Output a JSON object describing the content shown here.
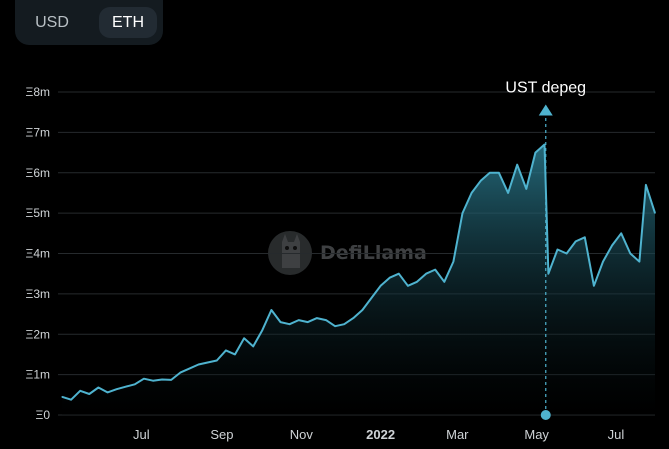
{
  "toggle": {
    "options": [
      "USD",
      "ETH"
    ],
    "selected": "ETH"
  },
  "watermark": {
    "text": "DefiLlama"
  },
  "colors": {
    "line": "#4fb3cf",
    "fill_top": "#2b7b8f",
    "fill_bottom": "#000000",
    "text": "#e6e6e6",
    "axis_text": "#cfd3d6",
    "background": "#000000"
  },
  "chart_data": {
    "type": "area",
    "title": "",
    "xlabel": "",
    "ylabel": "",
    "y_unit": "Ξ",
    "ylim": [
      0,
      8000000
    ],
    "y_ticks": [
      {
        "value": 0,
        "label": "Ξ0"
      },
      {
        "value": 1000000,
        "label": "Ξ1m"
      },
      {
        "value": 2000000,
        "label": "Ξ2m"
      },
      {
        "value": 3000000,
        "label": "Ξ3m"
      },
      {
        "value": 4000000,
        "label": "Ξ4m"
      },
      {
        "value": 5000000,
        "label": "Ξ5m"
      },
      {
        "value": 6000000,
        "label": "Ξ6m"
      },
      {
        "value": 7000000,
        "label": "Ξ7m"
      },
      {
        "value": 8000000,
        "label": "Ξ8m"
      }
    ],
    "xlim": [
      "2021-05-01",
      "2022-07-31"
    ],
    "x_ticks": [
      {
        "date": "2021-07-01",
        "label": "Jul",
        "bold": false
      },
      {
        "date": "2021-09-01",
        "label": "Sep",
        "bold": false
      },
      {
        "date": "2021-11-01",
        "label": "Nov",
        "bold": false
      },
      {
        "date": "2022-01-01",
        "label": "2022",
        "bold": true
      },
      {
        "date": "2022-03-01",
        "label": "Mar",
        "bold": false
      },
      {
        "date": "2022-05-01",
        "label": "May",
        "bold": false
      },
      {
        "date": "2022-07-01",
        "label": "Jul",
        "bold": false
      }
    ],
    "grid": true,
    "legend": "none",
    "annotation": {
      "label": "UST depeg",
      "date": "2022-05-08"
    },
    "series": [
      {
        "points": [
          [
            "2021-05-01",
            450000
          ],
          [
            "2021-05-08",
            380000
          ],
          [
            "2021-05-15",
            600000
          ],
          [
            "2021-05-22",
            520000
          ],
          [
            "2021-05-29",
            680000
          ],
          [
            "2021-06-05",
            560000
          ],
          [
            "2021-06-12",
            640000
          ],
          [
            "2021-06-19",
            700000
          ],
          [
            "2021-06-26",
            760000
          ],
          [
            "2021-07-03",
            900000
          ],
          [
            "2021-07-10",
            850000
          ],
          [
            "2021-07-17",
            880000
          ],
          [
            "2021-07-24",
            870000
          ],
          [
            "2021-07-31",
            1050000
          ],
          [
            "2021-08-07",
            1150000
          ],
          [
            "2021-08-14",
            1250000
          ],
          [
            "2021-08-21",
            1300000
          ],
          [
            "2021-08-28",
            1350000
          ],
          [
            "2021-09-04",
            1600000
          ],
          [
            "2021-09-11",
            1500000
          ],
          [
            "2021-09-18",
            1900000
          ],
          [
            "2021-09-25",
            1700000
          ],
          [
            "2021-10-02",
            2100000
          ],
          [
            "2021-10-09",
            2600000
          ],
          [
            "2021-10-16",
            2300000
          ],
          [
            "2021-10-23",
            2250000
          ],
          [
            "2021-10-30",
            2350000
          ],
          [
            "2021-11-06",
            2300000
          ],
          [
            "2021-11-13",
            2400000
          ],
          [
            "2021-11-20",
            2350000
          ],
          [
            "2021-11-27",
            2200000
          ],
          [
            "2021-12-04",
            2250000
          ],
          [
            "2021-12-11",
            2400000
          ],
          [
            "2021-12-18",
            2600000
          ],
          [
            "2021-12-25",
            2900000
          ],
          [
            "2022-01-01",
            3200000
          ],
          [
            "2022-01-08",
            3400000
          ],
          [
            "2022-01-15",
            3500000
          ],
          [
            "2022-01-22",
            3200000
          ],
          [
            "2022-01-29",
            3300000
          ],
          [
            "2022-02-05",
            3500000
          ],
          [
            "2022-02-12",
            3600000
          ],
          [
            "2022-02-19",
            3300000
          ],
          [
            "2022-02-26",
            3800000
          ],
          [
            "2022-03-05",
            5000000
          ],
          [
            "2022-03-12",
            5500000
          ],
          [
            "2022-03-19",
            5800000
          ],
          [
            "2022-03-26",
            6000000
          ],
          [
            "2022-04-02",
            6000000
          ],
          [
            "2022-04-09",
            5500000
          ],
          [
            "2022-04-16",
            6200000
          ],
          [
            "2022-04-23",
            5600000
          ],
          [
            "2022-04-30",
            6500000
          ],
          [
            "2022-05-07",
            6700000
          ],
          [
            "2022-05-10",
            3500000
          ],
          [
            "2022-05-17",
            4100000
          ],
          [
            "2022-05-24",
            4000000
          ],
          [
            "2022-05-31",
            4300000
          ],
          [
            "2022-06-07",
            4400000
          ],
          [
            "2022-06-14",
            3200000
          ],
          [
            "2022-06-21",
            3800000
          ],
          [
            "2022-06-28",
            4200000
          ],
          [
            "2022-07-05",
            4500000
          ],
          [
            "2022-07-12",
            4000000
          ],
          [
            "2022-07-19",
            3800000
          ],
          [
            "2022-07-24",
            5700000
          ],
          [
            "2022-07-31",
            5000000
          ]
        ]
      }
    ]
  }
}
